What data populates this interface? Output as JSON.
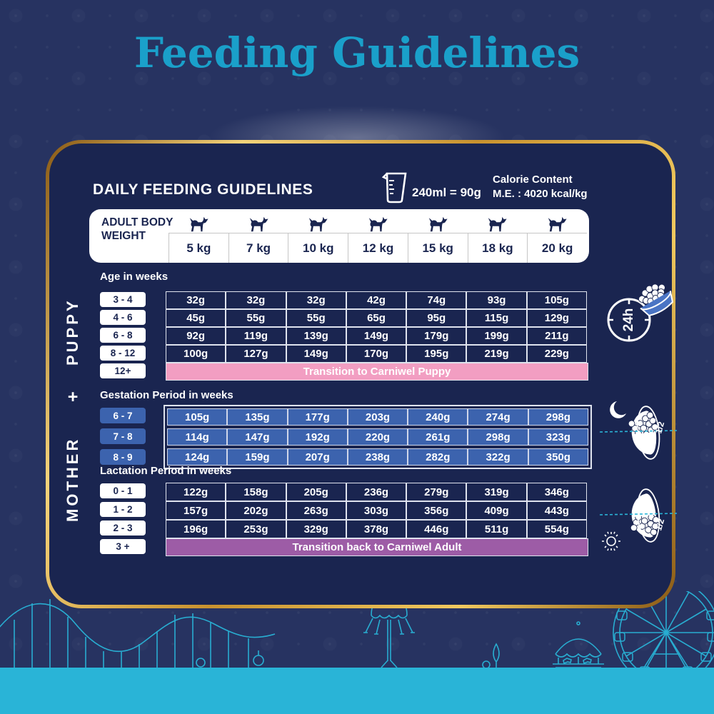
{
  "page": {
    "title": "Feeding Guidelines"
  },
  "panel": {
    "heading": "DAILY FEEDING GUIDELINES",
    "cup_note": "240ml = 90g",
    "calorie_line1": "Calorie Content",
    "calorie_line2": "M.E. : 4020 kcal/kg"
  },
  "weights_header": {
    "label": "ADULT BODY WEIGHT",
    "columns": [
      "5 kg",
      "7 kg",
      "10 kg",
      "12 kg",
      "15 kg",
      "18 kg",
      "20 kg"
    ]
  },
  "puppy": {
    "section_label": "PUPPY",
    "age_label": "Age in weeks",
    "rows": [
      {
        "age": "3 - 4",
        "values": [
          "32g",
          "32g",
          "32g",
          "42g",
          "74g",
          "93g",
          "105g"
        ]
      },
      {
        "age": "4 - 6",
        "values": [
          "45g",
          "55g",
          "55g",
          "65g",
          "95g",
          "115g",
          "129g"
        ]
      },
      {
        "age": "6 - 8",
        "values": [
          "92g",
          "119g",
          "139g",
          "149g",
          "179g",
          "199g",
          "211g"
        ]
      },
      {
        "age": "8 - 12",
        "values": [
          "100g",
          "127g",
          "149g",
          "170g",
          "195g",
          "219g",
          "229g"
        ]
      }
    ],
    "transition": {
      "age": "12+",
      "label": "Transition to Carniwel Puppy"
    },
    "feeding_icon_label": "24h"
  },
  "mother": {
    "plus": "+",
    "section_label": "MOTHER",
    "gestation": {
      "heading": "Gestation Period in weeks",
      "rows": [
        {
          "age": "6 - 7",
          "values": [
            "105g",
            "135g",
            "177g",
            "203g",
            "240g",
            "274g",
            "298g"
          ]
        },
        {
          "age": "7 - 8",
          "values": [
            "114g",
            "147g",
            "192g",
            "220g",
            "261g",
            "298g",
            "323g"
          ]
        },
        {
          "age": "8 - 9",
          "values": [
            "124g",
            "159g",
            "207g",
            "238g",
            "282g",
            "322g",
            "350g"
          ]
        }
      ],
      "half_icon_label": "1/2"
    },
    "lactation": {
      "heading": "Lactation Period in weeks",
      "rows": [
        {
          "age": "0 - 1",
          "values": [
            "122g",
            "158g",
            "205g",
            "236g",
            "279g",
            "319g",
            "346g"
          ]
        },
        {
          "age": "1 - 2",
          "values": [
            "157g",
            "202g",
            "263g",
            "303g",
            "356g",
            "409g",
            "443g"
          ]
        },
        {
          "age": "2 - 3",
          "values": [
            "196g",
            "253g",
            "329g",
            "378g",
            "446g",
            "511g",
            "554g"
          ]
        }
      ],
      "transition": {
        "age": "3 +",
        "label": "Transition back to Carniwel Adult"
      },
      "half_icon_label": "1/2"
    }
  },
  "icons": [
    "measuring-cup-icon",
    "dog-icon",
    "24h-clock-icon",
    "kibble-bowl-icon",
    "moon-icon",
    "half-bowl-night-icon",
    "sun-icon",
    "half-bowl-day-icon",
    "amusement-park-art"
  ],
  "colors": {
    "background": "#273361",
    "panel": "#1a2550",
    "title_teal": "#1aa0ca",
    "gold_border": "#d9a63f",
    "pink_banner": "#f29ec2",
    "purple_banner": "#9d5ca6",
    "blue_cell": "#3c63ae",
    "footer_teal": "#29b4d7",
    "white": "#ffffff"
  }
}
